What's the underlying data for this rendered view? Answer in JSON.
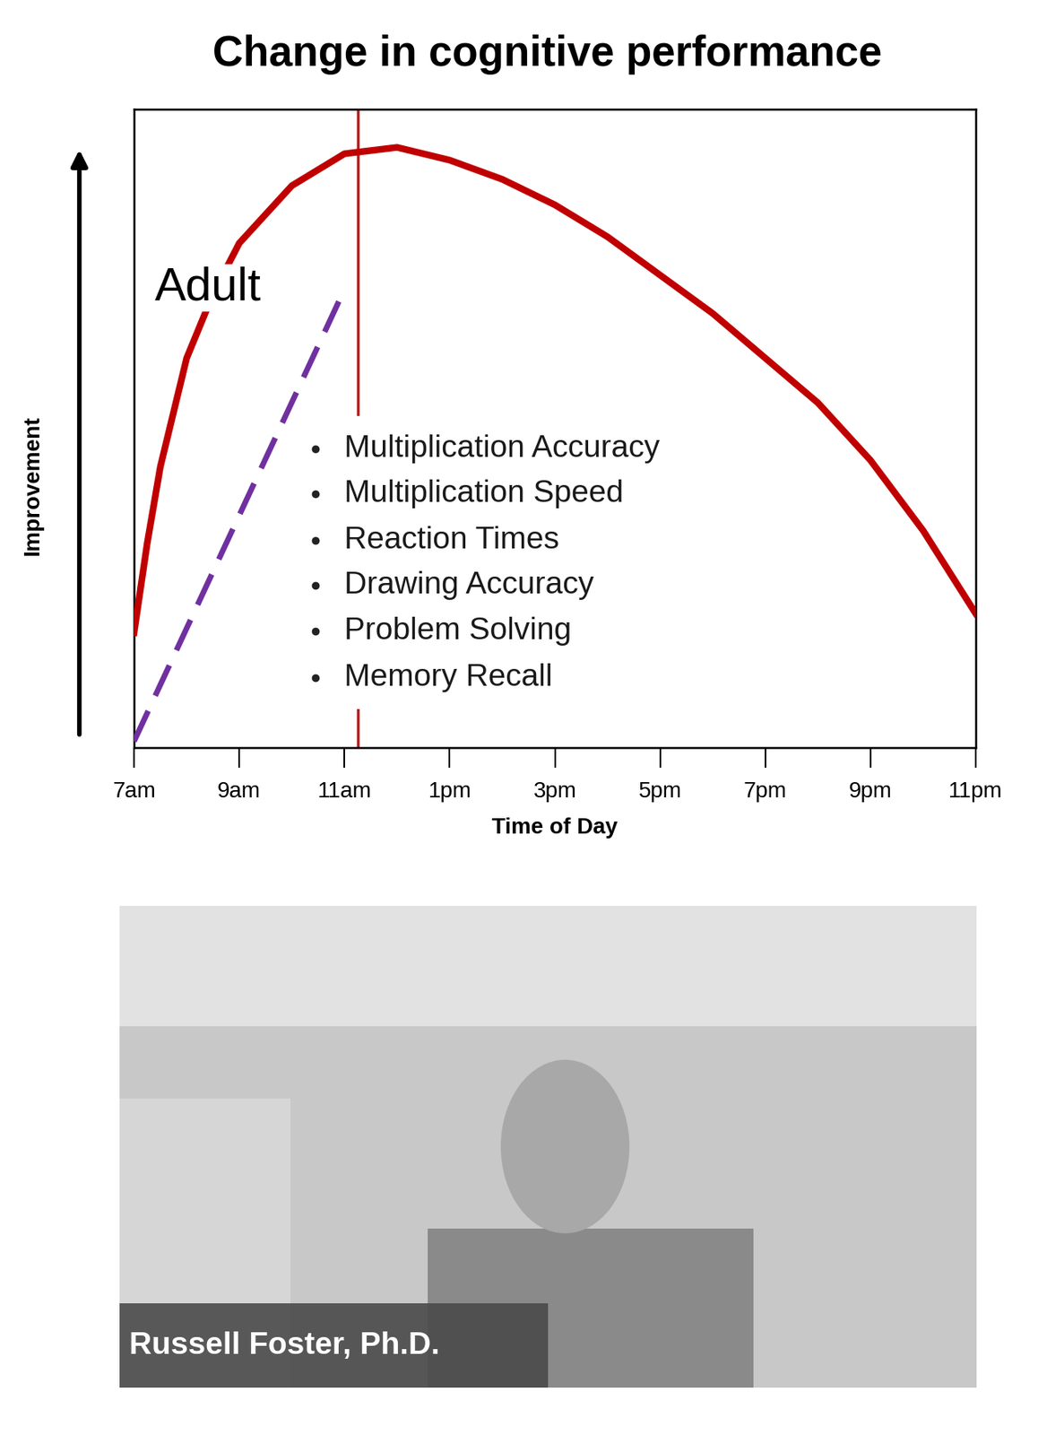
{
  "chart_data": {
    "type": "line",
    "title": "Change in cognitive performance",
    "x_label": "Time of Day",
    "y_label": "Improvement",
    "xlim": [
      7,
      23
    ],
    "ylim": [
      0,
      100
    ],
    "xticks": [
      {
        "value": 7,
        "label": "7am"
      },
      {
        "value": 9,
        "label": "9am"
      },
      {
        "value": 11,
        "label": "11am"
      },
      {
        "value": 13,
        "label": "1pm"
      },
      {
        "value": 15,
        "label": "3pm"
      },
      {
        "value": 17,
        "label": "5pm"
      },
      {
        "value": 19,
        "label": "7pm"
      },
      {
        "value": 21,
        "label": "9pm"
      },
      {
        "value": 23,
        "label": "11pm"
      }
    ],
    "tick_labels": "x",
    "grid": false,
    "series": [
      {
        "name": "Adult",
        "color": "#c00000",
        "line_style": "solid",
        "x": [
          7,
          7.25,
          7.5,
          8,
          8.5,
          9,
          10,
          11,
          12,
          13,
          14,
          15,
          16,
          17,
          18,
          19,
          20,
          21,
          22,
          23
        ],
        "values": [
          18,
          32,
          44,
          61,
          71,
          79,
          88,
          93,
          94,
          92,
          89,
          85,
          80,
          74,
          68,
          61,
          54,
          45,
          34,
          21
        ]
      },
      {
        "color": "#7030a0",
        "line_style": "dashed",
        "x": [
          7,
          10.9
        ],
        "values": [
          1,
          70
        ]
      }
    ],
    "vline": 11.25,
    "annotations": [
      "Multiplication Accuracy",
      "Multiplication Speed",
      "Reaction Times",
      "Drawing Accuracy",
      "Problem Solving",
      "Memory Recall"
    ]
  },
  "video": {
    "caption": "Russell Foster, Ph.D."
  }
}
